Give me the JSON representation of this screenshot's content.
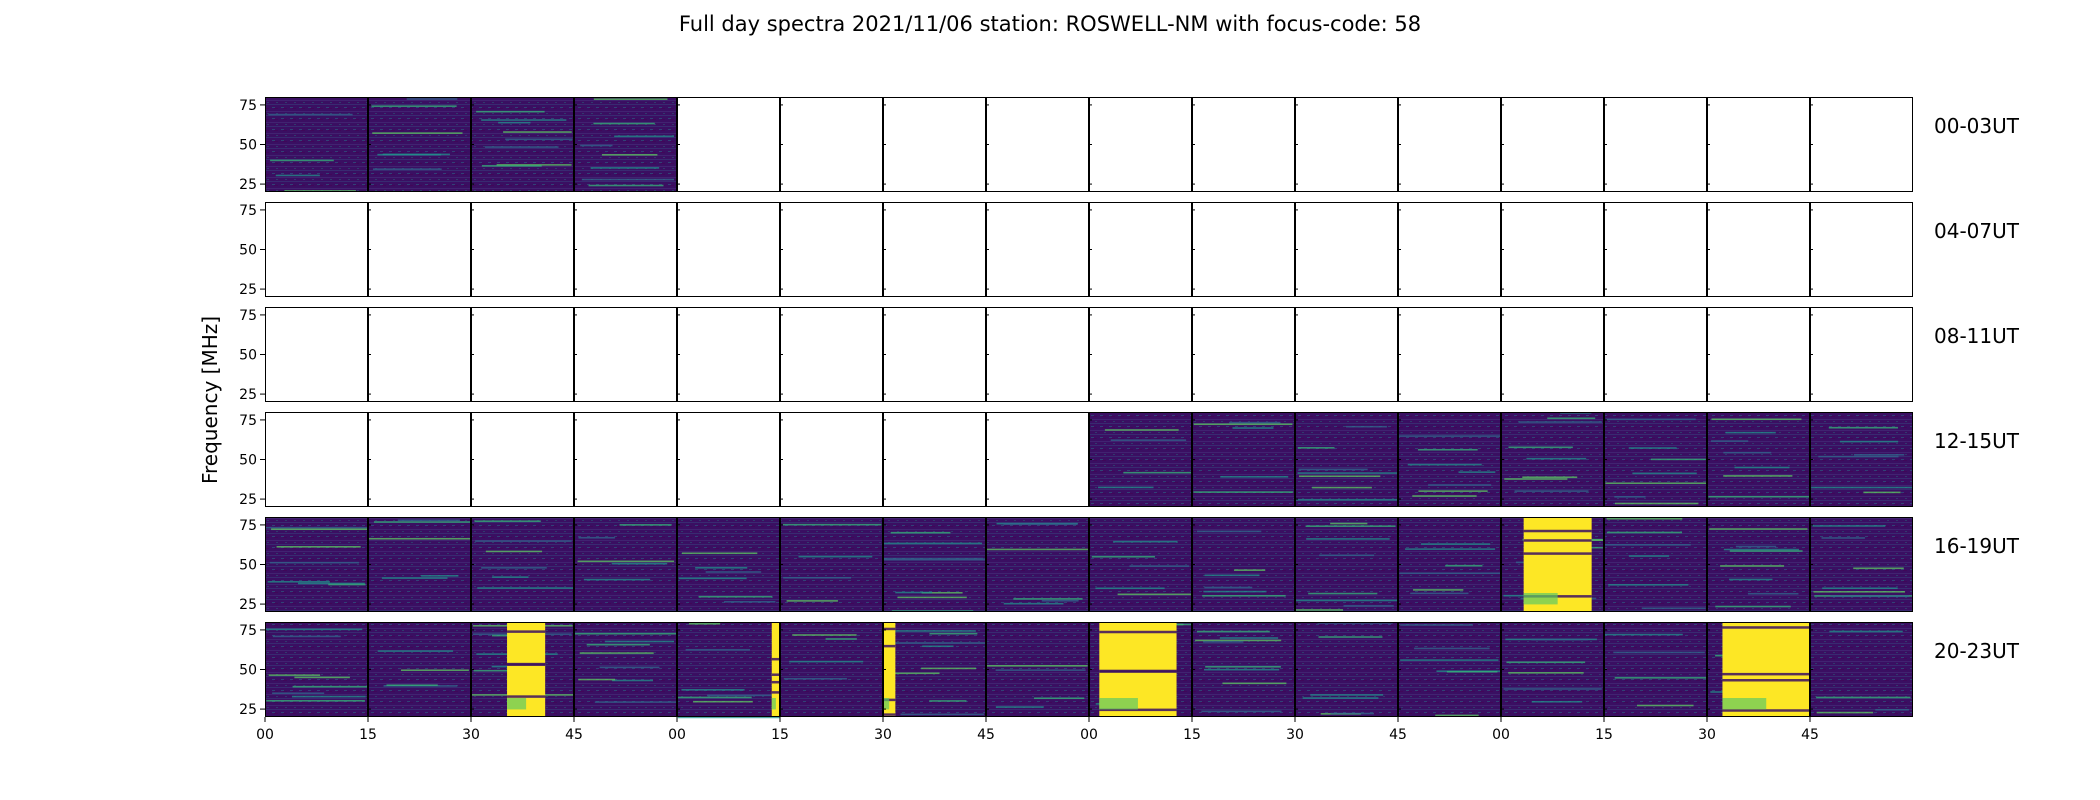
{
  "title": "Full day spectra 2021/11/06 station: ROSWELL-NM with focus-code: 58",
  "chart_data": {
    "type": "heatmap",
    "title": "Full day spectra 2021/11/06 station: ROSWELL-NM with focus-code: 58",
    "ylabel": "Frequency [MHz]",
    "xlabel": "",
    "ylim": [
      20,
      80
    ],
    "yticks": [
      25,
      50,
      75
    ],
    "x_tick_labels": [
      "00",
      "15",
      "30",
      "45",
      "00",
      "15",
      "30",
      "45",
      "00",
      "15",
      "30",
      "45",
      "00",
      "15",
      "30",
      "45"
    ],
    "row_labels": [
      "00-03UT",
      "04-07UT",
      "08-11UT",
      "12-15UT",
      "16-19UT",
      "20-23UT"
    ],
    "panels_per_row": 16,
    "colormap": [
      "#440154",
      "#3b528b",
      "#21918c",
      "#5ec962",
      "#fde725"
    ],
    "colors": {
      "background": "#3a0f62",
      "hot": "#fde725",
      "band": "#21918c"
    },
    "panels_with_data": [
      [
        1,
        1,
        1,
        1,
        0,
        0,
        0,
        0,
        0,
        0,
        0,
        0,
        0,
        0,
        0,
        0
      ],
      [
        0,
        0,
        0,
        0,
        0,
        0,
        0,
        0,
        0,
        0,
        0,
        0,
        0,
        0,
        0,
        0
      ],
      [
        0,
        0,
        0,
        0,
        0,
        0,
        0,
        0,
        0,
        0,
        0,
        0,
        0,
        0,
        0,
        0
      ],
      [
        0,
        0,
        0,
        0,
        0,
        0,
        0,
        0,
        1,
        1,
        1,
        1,
        1,
        1,
        1,
        1
      ],
      [
        1,
        1,
        1,
        1,
        1,
        1,
        1,
        1,
        1,
        1,
        1,
        1,
        1,
        1,
        1,
        1
      ],
      [
        1,
        1,
        1,
        1,
        1,
        1,
        1,
        1,
        1,
        1,
        1,
        1,
        1,
        1,
        1,
        1
      ]
    ],
    "bright_bursts": [
      {
        "row": 4,
        "panel": 12,
        "from": 0.22,
        "to": 0.88
      },
      {
        "row": 5,
        "panel": 2,
        "from": 0.35,
        "to": 0.72
      },
      {
        "row": 5,
        "panel": 8,
        "from": 0.1,
        "to": 0.85
      },
      {
        "row": 5,
        "panel": 14,
        "from": 0.15,
        "to": 1.0
      },
      {
        "row": 5,
        "panel": 4,
        "from": 0.92,
        "to": 1.0
      },
      {
        "row": 5,
        "panel": 6,
        "from": 0.0,
        "to": 0.12
      }
    ]
  }
}
